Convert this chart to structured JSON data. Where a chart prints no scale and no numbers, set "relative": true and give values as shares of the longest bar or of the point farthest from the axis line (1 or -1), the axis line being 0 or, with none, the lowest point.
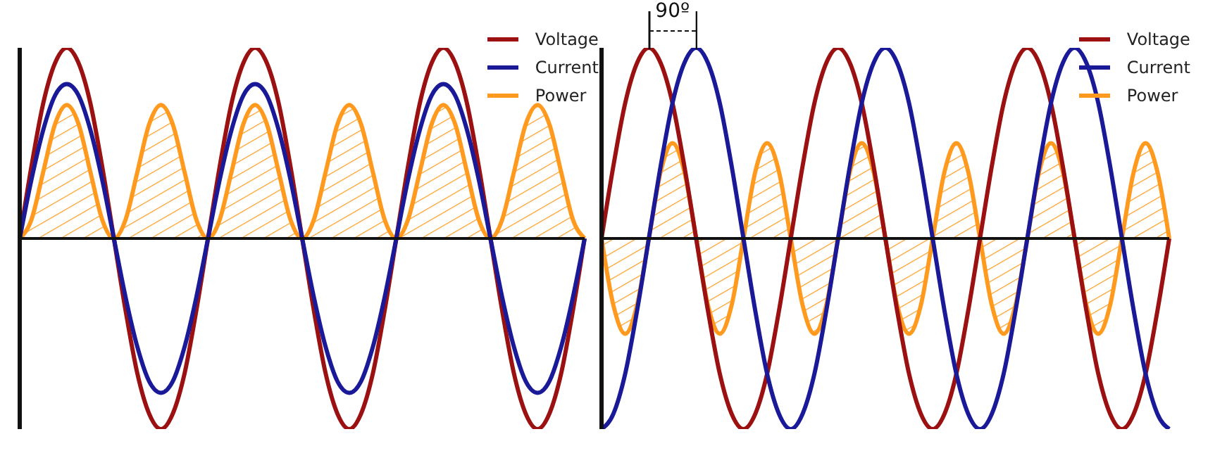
{
  "chart_data": [
    {
      "type": "line",
      "relative": true,
      "legend": "top right",
      "categories": [
        null,
        null,
        null,
        null,
        null,
        null,
        null,
        null,
        null,
        null,
        null,
        null,
        null,
        null,
        null,
        null,
        null,
        null,
        null,
        null,
        null,
        null,
        null,
        null,
        null,
        null,
        null,
        null,
        null,
        null,
        null,
        null,
        null,
        null,
        null,
        null,
        null,
        null,
        null,
        null,
        null,
        null,
        null,
        null,
        null,
        null,
        null,
        null,
        null
      ],
      "series": [
        {
          "name": "Voltage",
          "color": "#9b1111",
          "values": [
            0,
            0.38,
            0.71,
            0.92,
            1,
            0.92,
            0.71,
            0.38,
            0,
            -0.38,
            -0.71,
            -0.92,
            -1,
            -0.92,
            -0.71,
            -0.38,
            0,
            0.38,
            0.71,
            0.92,
            1,
            0.92,
            0.71,
            0.38,
            0,
            -0.38,
            -0.71,
            -0.92,
            -1,
            -0.92,
            -0.71,
            -0.38,
            0,
            0.38,
            0.71,
            0.92,
            1,
            0.92,
            0.71,
            0.38,
            0,
            -0.38,
            -0.71,
            -0.92,
            -1,
            -0.92,
            -0.71,
            -0.38,
            0
          ]
        },
        {
          "name": "Current",
          "color": "#1a1a99",
          "values": [
            0,
            0.31,
            0.57,
            0.75,
            0.81,
            0.75,
            0.57,
            0.31,
            0,
            -0.31,
            -0.57,
            -0.75,
            -0.81,
            -0.75,
            -0.57,
            -0.31,
            0,
            0.31,
            0.57,
            0.75,
            0.81,
            0.75,
            0.57,
            0.31,
            0,
            -0.31,
            -0.57,
            -0.75,
            -0.81,
            -0.75,
            -0.57,
            -0.31,
            0,
            0.31,
            0.57,
            0.75,
            0.81,
            0.75,
            0.57,
            0.31,
            0,
            -0.31,
            -0.57,
            -0.75,
            -0.81,
            -0.75,
            -0.57,
            -0.31,
            0
          ]
        },
        {
          "name": "Power",
          "type": "area",
          "color": "#ff9a1e",
          "values": [
            0,
            0.1,
            0.35,
            0.6,
            0.7,
            0.6,
            0.35,
            0.1,
            0,
            0.1,
            0.35,
            0.6,
            0.7,
            0.6,
            0.35,
            0.1,
            0,
            0.1,
            0.35,
            0.6,
            0.7,
            0.6,
            0.35,
            0.1,
            0,
            0.1,
            0.35,
            0.6,
            0.7,
            0.6,
            0.35,
            0.1,
            0,
            0.1,
            0.35,
            0.6,
            0.7,
            0.6,
            0.35,
            0.1,
            0,
            0.1,
            0.35,
            0.6,
            0.7,
            0.6,
            0.35,
            0.1,
            0
          ]
        }
      ]
    },
    {
      "type": "line",
      "relative": true,
      "legend": "top right",
      "annotations": [
        "90º"
      ],
      "categories": [
        null,
        null,
        null,
        null,
        null,
        null,
        null,
        null,
        null,
        null,
        null,
        null,
        null,
        null,
        null,
        null,
        null,
        null,
        null,
        null,
        null,
        null,
        null,
        null,
        null,
        null,
        null,
        null,
        null,
        null,
        null,
        null,
        null,
        null,
        null,
        null,
        null,
        null,
        null,
        null,
        null,
        null,
        null,
        null,
        null,
        null,
        null,
        null,
        null
      ],
      "series": [
        {
          "name": "Voltage",
          "color": "#9b1111",
          "values": [
            0,
            0.38,
            0.71,
            0.92,
            1,
            0.92,
            0.71,
            0.38,
            0,
            -0.38,
            -0.71,
            -0.92,
            -1,
            -0.92,
            -0.71,
            -0.38,
            0,
            0.38,
            0.71,
            0.92,
            1,
            0.92,
            0.71,
            0.38,
            0,
            -0.38,
            -0.71,
            -0.92,
            -1,
            -0.92,
            -0.71,
            -0.38,
            0,
            0.38,
            0.71,
            0.92,
            1,
            0.92,
            0.71,
            0.38,
            0,
            -0.38,
            -0.71,
            -0.92,
            -1,
            -0.92,
            -0.71,
            -0.38,
            0
          ]
        },
        {
          "name": "Current",
          "color": "#1a1a99",
          "values": [
            -1,
            -0.92,
            -0.71,
            -0.38,
            0,
            0.38,
            0.71,
            0.92,
            1,
            0.92,
            0.71,
            0.38,
            0,
            -0.38,
            -0.71,
            -0.92,
            -1,
            -0.92,
            -0.71,
            -0.38,
            0,
            0.38,
            0.71,
            0.92,
            1,
            0.92,
            0.71,
            0.38,
            0,
            -0.38,
            -0.71,
            -0.92,
            -1,
            -0.92,
            -0.71,
            -0.38,
            0,
            0.38,
            0.71,
            0.92,
            1,
            0.92,
            0.71,
            0.38,
            0,
            -0.38,
            -0.71,
            -0.92,
            -1
          ]
        },
        {
          "name": "Power",
          "type": "area",
          "color": "#ff9a1e",
          "values": [
            0,
            -0.35,
            -0.5,
            -0.35,
            0,
            0.35,
            0.5,
            0.35,
            0,
            -0.35,
            -0.5,
            -0.35,
            0,
            0.35,
            0.5,
            0.35,
            0,
            -0.35,
            -0.5,
            -0.35,
            0,
            0.35,
            0.5,
            0.35,
            0,
            -0.35,
            -0.5,
            -0.35,
            0,
            0.35,
            0.5,
            0.35,
            0,
            -0.35,
            -0.5,
            -0.35,
            0,
            0.35,
            0.5,
            0.35,
            0,
            -0.35,
            -0.5,
            -0.35,
            0,
            0.35,
            0.5,
            0.35,
            0
          ]
        }
      ]
    }
  ]
}
